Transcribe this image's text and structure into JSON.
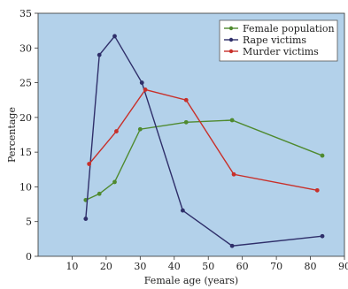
{
  "chart_data": {
    "type": "line",
    "xlabel": "Female age (years)",
    "ylabel": "Percentage",
    "xlim": [
      0,
      90
    ],
    "ylim": [
      0,
      35
    ],
    "xticks": [
      10,
      20,
      30,
      40,
      50,
      60,
      70,
      80,
      90
    ],
    "yticks": [
      0,
      5,
      10,
      15,
      20,
      25,
      30,
      35
    ],
    "grid": false,
    "legend_position": "top-right",
    "plot_background": "#b3d1ea",
    "series": [
      {
        "name": "Female population",
        "color": "#4f8a2f",
        "x": [
          14,
          18,
          22.5,
          30,
          43.5,
          57,
          83.5
        ],
        "y": [
          8.1,
          9.0,
          10.7,
          18.3,
          19.3,
          19.6,
          14.5
        ]
      },
      {
        "name": "Rape victims",
        "color": "#2f2f6a",
        "x": [
          14,
          18,
          22.5,
          30.5,
          42.5,
          57,
          83.5
        ],
        "y": [
          5.4,
          29.0,
          31.7,
          25.0,
          6.6,
          1.5,
          2.9
        ]
      },
      {
        "name": "Murder victims",
        "color": "#c8302a",
        "x": [
          15,
          23,
          31.5,
          43.5,
          57.5,
          82
        ],
        "y": [
          13.3,
          18.0,
          24.0,
          22.5,
          11.8,
          9.5
        ]
      }
    ]
  }
}
